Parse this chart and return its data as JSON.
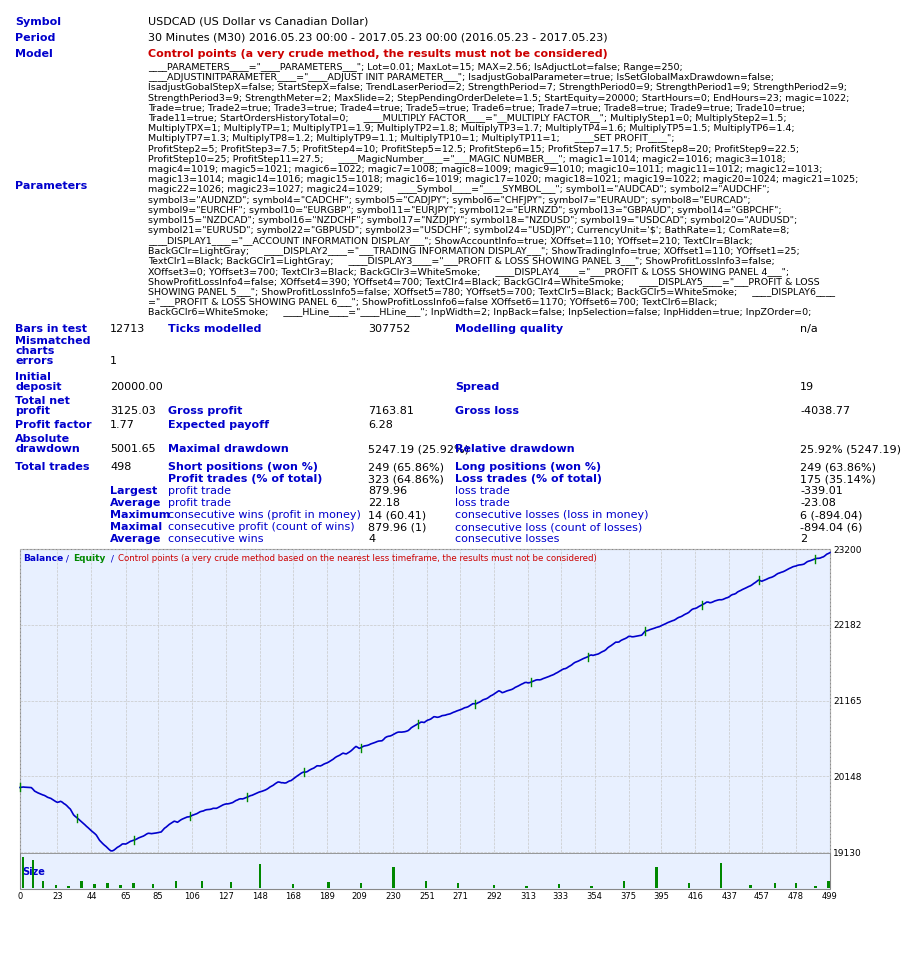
{
  "symbol_label": "Symbol",
  "symbol_value": "USDCAD (US Dollar vs Canadian Dollar)",
  "period_label": "Period",
  "period_value": "30 Minutes (M30) 2016.05.23 00:00 - 2017.05.23 00:00 (2016.05.23 - 2017.05.23)",
  "model_label": "Model",
  "model_value": "Control points (a very crude method, the results must not be considered)",
  "params_label": "Parameters",
  "params_lines": [
    "____PARAMETERS____=\"____PARAMETERS___\"; Lot=0.01; MaxLot=15; MAX=2.56; IsAdjuctLot=false; Range=250;",
    "____ADJUSTINITPARAMETER____=\"____ADJUST INIT PARAMETER___\"; IsadjustGobalParameter=true; IsSetGlobalMaxDrawdown=false;",
    "IsadjustGobalStepX=false; StartStepX=false; TrendLaserPeriod=2; StrengthPeriod=7; StrengthPeriod0=9; StrengthPeriod1=9; StrengthPeriod2=9;",
    "StrengthPeriod3=9; StrengthMeter=2; MaxSlide=2; StepPendingOrderDelete=1.5; StartEquity=20000; StartHours=0; EndHours=23; magic=1022;",
    "Trade=true; Trade2=true; Trade3=true; Trade4=true; Trade5=true; Trade6=true; Trade7=true; Trade8=true; Trade9=true; Trade10=true;",
    "Trade11=true; StartOrdersHistoryTotal=0;     ____MULTIPLY FACTOR____=\"__MULTIPLY FACTOR__\"; MultiplyStep1=0; MultiplyStep2=1.5;",
    "MultiplyTPX=1; MultiplyTP=1; MultiplyTP1=1.9; MultiplyTP2=1.8; MultiplyTP3=1.7; MultiplyTP4=1.6; MultiplyTP5=1.5; MultiplyTP6=1.4;",
    "MultiplyTP7=1.3; MultiplyTP8=1.2; MultiplyTP9=1.1; MultiplyTP10=1; MultiplyTP11=1;     ____SET PROFIT____\";",
    "ProfitStep2=5; ProfitStep3=7.5; ProfitStep4=10; ProfitStep5=12.5; ProfitStep6=15; ProfitStep7=17.5; ProfitStep8=20; ProfitStep9=22.5;",
    "ProfitStep10=25; ProfitStep11=27.5;     ____MagicNumber____=\"___MAGIC NUMBER___\"; magic1=1014; magic2=1016; magic3=1018;",
    "magic4=1019; magic5=1021; magic6=1022; magic7=1008; magic8=1009; magic9=1010; magic10=1011; magic11=1012; magic12=1013;",
    "magic13=1014; magic14=1016; magic15=1018; magic16=1019; magic17=1020; magic18=1021; magic19=1022; magic20=1024; magic21=1025;",
    "magic22=1026; magic23=1027; magic24=1029;     ____Symbol____=\"____SYMBOL___\"; symbol1=\"AUDCAD\"; symbol2=\"AUDCHF\";",
    "symbol3=\"AUDNZD\"; symbol4=\"CADCHF\"; symbol5=\"CADJPY\"; symbol6=\"CHFJPY\"; symbol7=\"EURAUD\"; symbol8=\"EURCAD\";",
    "symbol9=\"EURCHF\"; symbol10=\"EURGBP\"; symbol11=\"EURJPY\"; symbol12=\"EURNZD\"; symbol13=\"GBPAUD\"; symbol14=\"GBPCHF\";",
    "symbol15=\"NZDCAD\"; symbol16=\"NZDCHF\"; symbol17=\"NZDJPY\"; symbol18=\"NZDUSD\"; symbol19=\"USDCAD\"; symbol20=\"AUDUSD\";",
    "symbol21=\"EURUSD\"; symbol22=\"GBPUSD\"; symbol23=\"USDCHF\"; symbol24=\"USDJPY\"; CurrencyUnit='$'; BathRate=1; ComRate=8;",
    "____DISPLAY1____=\"__ACCOUNT INFORMATION DISPLAY___\"; ShowAccountInfo=true; XOffset=110; YOffset=210; TextClr=Black;",
    "BackGClr=LightGray;     ____DISPLAY2____=\"___TRADING INFORMATION DISPLAY___\"; ShowTradingInfo=true; XOffset1=110; YOffset1=25;",
    "TextClr1=Black; BackGClr1=LightGray;     ____DISPLAY3____=\"___PROFIT & LOSS SHOWING PANEL 3___\"; ShowProfitLossInfo3=false;",
    "XOffset3=0; YOffset3=700; TextClr3=Black; BackGClr3=WhiteSmoke;     ____DISPLAY4____=\"___PROFIT & LOSS SHOWING PANEL 4___\";",
    "ShowProfitLossInfo4=false; XOffset4=390; YOffset4=700; TextClr4=Black; BackGClr4=WhiteSmoke;     ____DISPLAY5____=\"___PROFIT & LOSS",
    "SHOWING PANEL 5___\"; ShowProfitLossInfo5=false; XOffset5=780; YOffset5=700; TextClr5=Black; BackGClr5=WhiteSmoke;     ____DISPLAY6____",
    "=\"___PROFIT & LOSS SHOWING PANEL 6___\"; ShowProfitLossInfo6=false XOffset6=1170; YOffset6=700; TextClr6=Black;",
    "BackGClr6=WhiteSmoke;     ____HLine____=\"____HLine___\"; InpWidth=2; InpBack=false; InpSelection=false; InpHidden=true; InpZOrder=0;"
  ],
  "bars_in_test": "12713",
  "ticks_modelled": "307752",
  "modelling_quality": "n/a",
  "mismatched_charts_errors": "1",
  "initial_deposit": "20000.00",
  "spread": "19",
  "total_net_profit": "3125.03",
  "gross_profit": "7163.81",
  "gross_loss": "-4038.77",
  "profit_factor": "1.77",
  "expected_payoff": "6.28",
  "absolute_drawdown": "5001.65",
  "maximal_drawdown": "5247.19 (25.92%)",
  "relative_drawdown": "25.92% (5247.19)",
  "total_trades": "498",
  "short_positions": "249 (65.86%)",
  "long_positions": "249 (63.86%)",
  "profit_trades": "323 (64.86%)",
  "loss_trades": "175 (35.14%)",
  "largest_profit_trade": "879.96",
  "largest_loss_trade": "-339.01",
  "average_profit_trade": "22.18",
  "average_loss_trade": "-23.08",
  "max_consecutive_wins": "14 (60.41)",
  "max_consecutive_losses": "6 (-894.04)",
  "maximal_consecutive_profit": "879.96 (1)",
  "maximal_consecutive_loss": "-894.04 (6)",
  "average_consecutive_wins": "4",
  "average_consecutive_losses": "2",
  "y_ticks": [
    19130,
    20148,
    21165,
    22182,
    23200
  ],
  "x_tick_labels": [
    0,
    23,
    44,
    65,
    85,
    106,
    127,
    148,
    168,
    189,
    209,
    230,
    251,
    271,
    292,
    313,
    333,
    354,
    375,
    395,
    416,
    437,
    457,
    478,
    499
  ],
  "chart_bg": "#ffffff",
  "label_color": "#0000cc",
  "value_color": "#000000",
  "red_color": "#cc0000",
  "blue_line_color": "#0000cd",
  "green_line_color": "#008800",
  "chart_border_color": "#888888",
  "chart_inner_bg": "#e8f0ff",
  "grid_color": "#c8c8c8",
  "size_bar_color": "#008800"
}
